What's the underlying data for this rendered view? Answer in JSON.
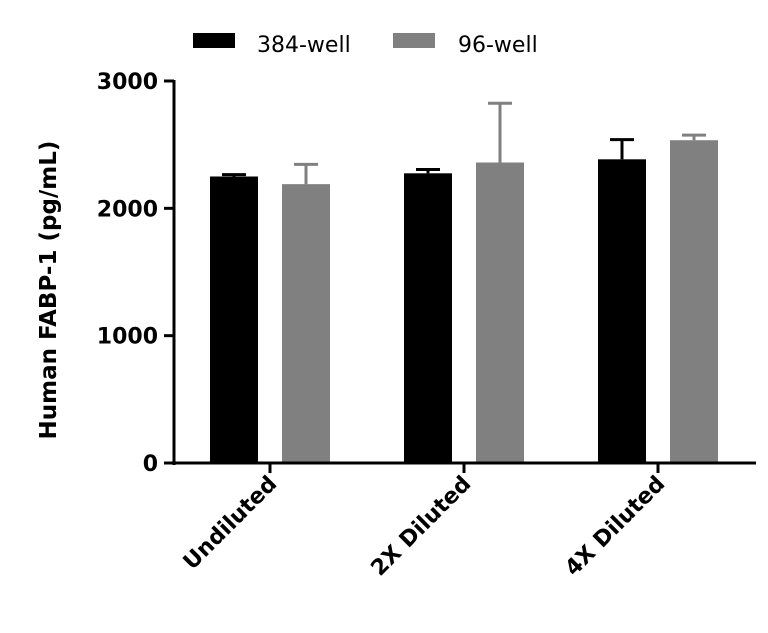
{
  "chart_data": {
    "type": "bar",
    "title": "",
    "xlabel": "",
    "ylabel": "Human FABP-1 (pg/mL)",
    "ylim": [
      0,
      3000
    ],
    "yticks": [
      0,
      1000,
      2000,
      3000
    ],
    "grid": false,
    "legend_position": "top",
    "categories": [
      "Undiluted",
      "2X Diluted",
      "4X Diluted"
    ],
    "series": [
      {
        "name": "384-well",
        "color": "#000000",
        "values": [
          2250,
          2275,
          2385
        ],
        "error_upper": [
          2265,
          2305,
          2540
        ]
      },
      {
        "name": "96-well",
        "color": "#808080",
        "values": [
          2190,
          2360,
          2535
        ],
        "error_upper": [
          2345,
          2825,
          2575
        ]
      }
    ]
  },
  "legend": {
    "items": [
      {
        "label": "384-well",
        "color": "#000000"
      },
      {
        "label": "96-well",
        "color": "#808080"
      }
    ]
  },
  "axes": {
    "y_title": "Human FABP-1 (pg/mL)",
    "y_tick_labels": [
      "0",
      "1000",
      "2000",
      "3000"
    ],
    "x_tick_labels": [
      "Undiluted",
      "2X Diluted",
      "4X Diluted"
    ]
  }
}
